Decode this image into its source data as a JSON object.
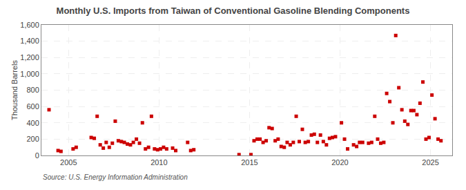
{
  "chart_data": {
    "type": "scatter",
    "title": "Monthly U.S. Imports from Taiwan of Conventional Gasoline Blending Components",
    "ylabel": "Thousand Barrels",
    "annotation": "Source: U.S. Energy Information Administration",
    "color": "#cc0000",
    "marker": "square",
    "grid": true,
    "xlim": [
      2003.5,
      2026.2
    ],
    "xticks": [
      2005,
      2010,
      2015,
      2020,
      2025
    ],
    "ylim": [
      0,
      1600
    ],
    "yticks": [
      0,
      200,
      400,
      600,
      800,
      {
        "value": 1000,
        "label": "1,000"
      },
      {
        "value": 1200,
        "label": "1,200"
      },
      {
        "value": 1400,
        "label": "1,400"
      },
      {
        "value": 1600,
        "label": "1,600"
      }
    ],
    "x": [
      2003.92,
      2004.42,
      2004.58,
      2005.25,
      2005.42,
      2006.25,
      2006.42,
      2006.58,
      2006.75,
      2006.92,
      2007.08,
      2007.25,
      2007.42,
      2007.58,
      2007.75,
      2007.92,
      2008.08,
      2008.25,
      2008.42,
      2008.58,
      2008.75,
      2008.92,
      2009.08,
      2009.25,
      2009.42,
      2009.58,
      2009.75,
      2009.92,
      2010.08,
      2010.25,
      2010.42,
      2010.75,
      2010.92,
      2011.58,
      2011.75,
      2011.92,
      2014.42,
      2015.08,
      2015.25,
      2015.42,
      2015.58,
      2015.75,
      2015.92,
      2016.08,
      2016.25,
      2016.42,
      2016.58,
      2016.75,
      2016.92,
      2017.08,
      2017.25,
      2017.42,
      2017.58,
      2017.75,
      2017.92,
      2018.08,
      2018.25,
      2018.42,
      2018.58,
      2018.75,
      2018.92,
      2019.08,
      2019.25,
      2019.42,
      2019.58,
      2019.75,
      2020.08,
      2020.25,
      2020.42,
      2020.75,
      2020.92,
      2021.08,
      2021.25,
      2021.58,
      2021.75,
      2021.92,
      2022.08,
      2022.25,
      2022.42,
      2022.58,
      2022.75,
      2022.92,
      2023.08,
      2023.25,
      2023.42,
      2023.58,
      2023.75,
      2023.92,
      2024.08,
      2024.25,
      2024.42,
      2024.58,
      2024.75,
      2024.92,
      2025.08,
      2025.25,
      2025.42,
      2025.58
    ],
    "values": [
      560,
      60,
      50,
      80,
      100,
      220,
      210,
      480,
      130,
      90,
      160,
      100,
      150,
      420,
      180,
      170,
      160,
      140,
      130,
      160,
      200,
      150,
      400,
      80,
      100,
      480,
      80,
      70,
      80,
      100,
      80,
      90,
      60,
      160,
      60,
      70,
      10,
      10,
      180,
      200,
      200,
      160,
      180,
      340,
      330,
      180,
      200,
      110,
      100,
      160,
      130,
      160,
      480,
      170,
      320,
      160,
      170,
      250,
      260,
      160,
      250,
      170,
      130,
      210,
      220,
      230,
      400,
      200,
      80,
      130,
      110,
      160,
      160,
      150,
      160,
      480,
      200,
      150,
      160,
      760,
      660,
      400,
      1470,
      830,
      560,
      420,
      380,
      550,
      550,
      500,
      640,
      900,
      200,
      220,
      740,
      450,
      200,
      180
    ]
  }
}
